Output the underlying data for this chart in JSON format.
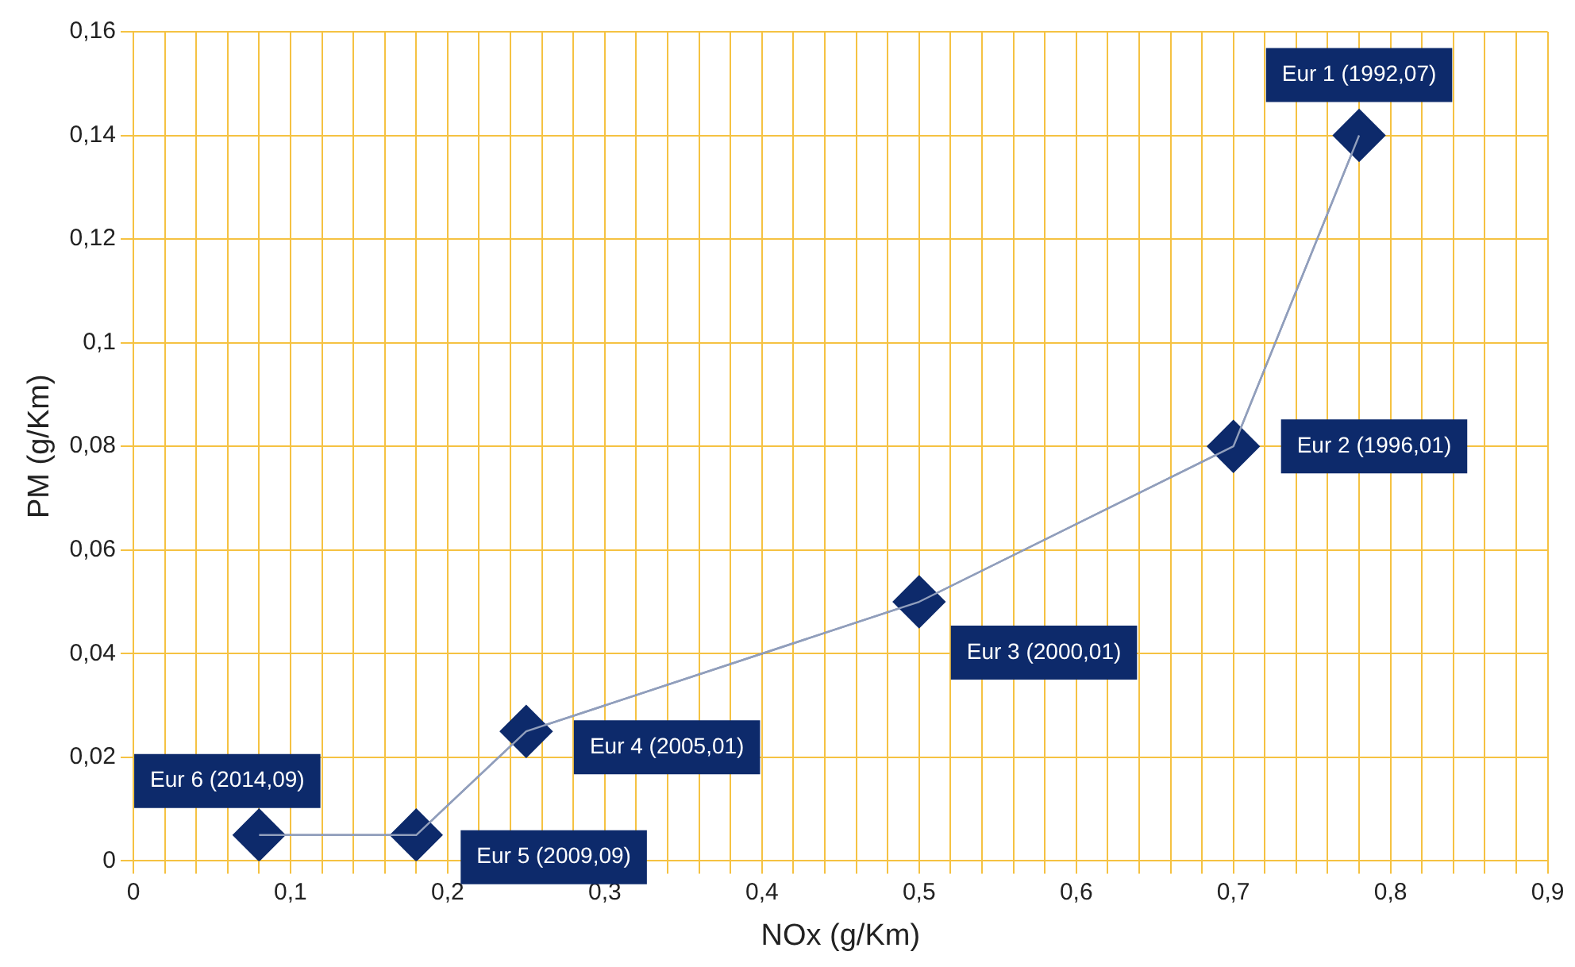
{
  "chart_data": {
    "type": "line",
    "xlabel": "NOx (g/Km)",
    "ylabel": "PM (g/Km)",
    "x": [
      0.78,
      0.7,
      0.5,
      0.25,
      0.18,
      0.08
    ],
    "series": [
      {
        "color": "#0d2a6b",
        "values": [
          0.14,
          0.08,
          0.05,
          0.025,
          0.005,
          0.005
        ]
      }
    ],
    "marker": "diamond",
    "grid": true,
    "legend": false,
    "xlim": [
      0,
      0.9
    ],
    "xticks": [
      {
        "value": 0,
        "label": "0"
      },
      {
        "value": 0.02,
        "label": null
      },
      {
        "value": 0.04,
        "label": null
      },
      {
        "value": 0.06,
        "label": null
      },
      {
        "value": 0.08,
        "label": null
      },
      {
        "value": 0.1,
        "label": "0,1"
      },
      {
        "value": 0.12,
        "label": null
      },
      {
        "value": 0.14,
        "label": null
      },
      {
        "value": 0.16,
        "label": null
      },
      {
        "value": 0.18,
        "label": null
      },
      {
        "value": 0.2,
        "label": "0,2"
      },
      {
        "value": 0.22,
        "label": null
      },
      {
        "value": 0.24,
        "label": null
      },
      {
        "value": 0.26,
        "label": null
      },
      {
        "value": 0.28,
        "label": null
      },
      {
        "value": 0.3,
        "label": "0,3"
      },
      {
        "value": 0.32,
        "label": null
      },
      {
        "value": 0.34,
        "label": null
      },
      {
        "value": 0.36,
        "label": null
      },
      {
        "value": 0.38,
        "label": null
      },
      {
        "value": 0.4,
        "label": "0,4"
      },
      {
        "value": 0.42,
        "label": null
      },
      {
        "value": 0.44,
        "label": null
      },
      {
        "value": 0.46,
        "label": null
      },
      {
        "value": 0.48,
        "label": null
      },
      {
        "value": 0.5,
        "label": "0,5"
      },
      {
        "value": 0.52,
        "label": null
      },
      {
        "value": 0.54,
        "label": null
      },
      {
        "value": 0.56,
        "label": null
      },
      {
        "value": 0.58,
        "label": null
      },
      {
        "value": 0.6,
        "label": "0,6"
      },
      {
        "value": 0.62,
        "label": null
      },
      {
        "value": 0.64,
        "label": null
      },
      {
        "value": 0.66,
        "label": null
      },
      {
        "value": 0.68,
        "label": null
      },
      {
        "value": 0.7,
        "label": "0,7"
      },
      {
        "value": 0.72,
        "label": null
      },
      {
        "value": 0.74,
        "label": null
      },
      {
        "value": 0.76,
        "label": null
      },
      {
        "value": 0.78,
        "label": null
      },
      {
        "value": 0.8,
        "label": "0,8"
      },
      {
        "value": 0.82,
        "label": null
      },
      {
        "value": 0.84,
        "label": null
      },
      {
        "value": 0.86,
        "label": null
      },
      {
        "value": 0.88,
        "label": null
      },
      {
        "value": 0.9,
        "label": "0,9"
      }
    ],
    "ylim": [
      0,
      0.16
    ],
    "yticks": [
      {
        "value": 0,
        "label": "0"
      },
      {
        "value": 0.02,
        "label": "0,02"
      },
      {
        "value": 0.04,
        "label": "0,04"
      },
      {
        "value": 0.06,
        "label": "0,06"
      },
      {
        "value": 0.08,
        "label": "0,08"
      },
      {
        "value": 0.1,
        "label": "0,1"
      },
      {
        "value": 0.12,
        "label": "0,12"
      },
      {
        "value": 0.14,
        "label": "0,14"
      },
      {
        "value": 0.16,
        "label": "0,16"
      }
    ],
    "annotations": [
      {
        "text": "Eur 1 (1992,07)",
        "x": 0.78,
        "y": 0.14
      },
      {
        "text": "Eur 2 (1996,01)",
        "x": 0.7,
        "y": 0.08
      },
      {
        "text": "Eur 3 (2000,01)",
        "x": 0.5,
        "y": 0.05
      },
      {
        "text": "Eur 4 (2005,01)",
        "x": 0.25,
        "y": 0.025
      },
      {
        "text": "Eur 5 (2009,09)",
        "x": 0.18,
        "y": 0.005
      },
      {
        "text": "Eur 6 (2014,09)",
        "x": 0.08,
        "y": 0.005
      }
    ]
  }
}
